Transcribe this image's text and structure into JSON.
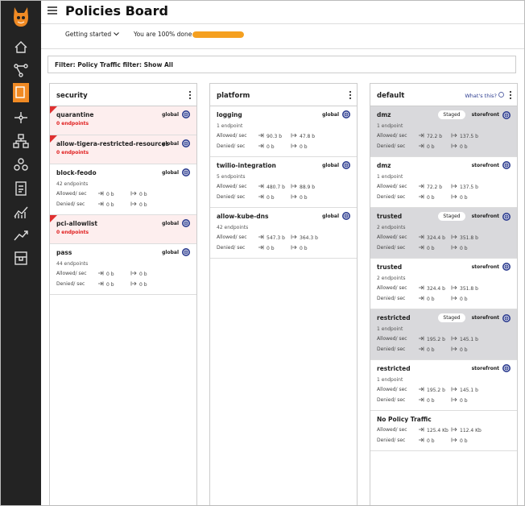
{
  "header": {
    "title": "Policies Board",
    "getting_started": "Getting started",
    "progress_text": "You are 100% done",
    "progress": 100
  },
  "filter": "Filter: Policy Traffic filter: Show All",
  "columns": [
    {
      "name": "security",
      "cards": [
        {
          "name": "quarantine",
          "scope": "global",
          "endpoints": "0 endpoints",
          "alert": true
        },
        {
          "name": "allow-tigera-restricted-resources",
          "scope": "global",
          "endpoints": "0 endpoints",
          "alert": true
        },
        {
          "name": "block-feodo",
          "scope": "global",
          "endpoints": "42 endpoints",
          "allowed": {
            "label": "Allowed/ sec",
            "in": "0 b",
            "out": "0 b"
          },
          "denied": {
            "label": "Denied/ sec",
            "in": "0 b",
            "out": "0 b"
          }
        },
        {
          "name": "pci-allowlist",
          "scope": "global",
          "endpoints": "0 endpoints",
          "alert": true
        },
        {
          "name": "pass",
          "scope": "global",
          "endpoints": "44 endpoints",
          "allowed": {
            "label": "Allowed/ sec",
            "in": "0 b",
            "out": "0 b"
          },
          "denied": {
            "label": "Denied/ sec",
            "in": "0 b",
            "out": "0 b"
          }
        }
      ]
    },
    {
      "name": "platform",
      "cards": [
        {
          "name": "logging",
          "scope": "global",
          "endpoints": "1 endpoint",
          "allowed": {
            "label": "Allowed/ sec",
            "in": "90.3 b",
            "out": "47.8 b"
          },
          "denied": {
            "label": "Denied/ sec",
            "in": "0 b",
            "out": "0 b"
          }
        },
        {
          "name": "twilio-integration",
          "scope": "global",
          "endpoints": "5 endpoints",
          "allowed": {
            "label": "Allowed/ sec",
            "in": "480.7 b",
            "out": "88.9 b"
          },
          "denied": {
            "label": "Denied/ sec",
            "in": "0 b",
            "out": "0 b"
          }
        },
        {
          "name": "allow-kube-dns",
          "scope": "global",
          "endpoints": "42 endpoints",
          "allowed": {
            "label": "Allowed/ sec",
            "in": "547.3 b",
            "out": "364.3 b"
          },
          "denied": {
            "label": "Denied/ sec",
            "in": "0 b",
            "out": "0 b"
          }
        }
      ]
    },
    {
      "name": "default",
      "help": "What's this?",
      "cards": [
        {
          "name": "dmz",
          "staged": "Staged",
          "scope": "storefront",
          "endpoints": "1 endpoint",
          "allowed": {
            "label": "Allowed/ sec",
            "in": "72.2 b",
            "out": "137.5 b"
          },
          "denied": {
            "label": "Denied/ sec",
            "in": "0 b",
            "out": "0 b"
          }
        },
        {
          "name": "dmz",
          "scope": "storefront",
          "endpoints": "1 endpoint",
          "allowed": {
            "label": "Allowed/ sec",
            "in": "72.2 b",
            "out": "137.5 b"
          },
          "denied": {
            "label": "Denied/ sec",
            "in": "0 b",
            "out": "0 b"
          }
        },
        {
          "name": "trusted",
          "staged": "Staged",
          "scope": "storefront",
          "endpoints": "2 endpoints",
          "allowed": {
            "label": "Allowed/ sec",
            "in": "324.4 b",
            "out": "351.8 b"
          },
          "denied": {
            "label": "Denied/ sec",
            "in": "0 b",
            "out": "0 b"
          }
        },
        {
          "name": "trusted",
          "scope": "storefront",
          "endpoints": "2 endpoints",
          "allowed": {
            "label": "Allowed/ sec",
            "in": "324.4 b",
            "out": "351.8 b"
          },
          "denied": {
            "label": "Denied/ sec",
            "in": "0 b",
            "out": "0 b"
          }
        },
        {
          "name": "restricted",
          "staged": "Staged",
          "scope": "storefront",
          "endpoints": "1 endpoint",
          "allowed": {
            "label": "Allowed/ sec",
            "in": "195.2 b",
            "out": "145.1 b"
          },
          "denied": {
            "label": "Denied/ sec",
            "in": "0 b",
            "out": "0 b"
          }
        },
        {
          "name": "restricted",
          "scope": "storefront",
          "endpoints": "1 endpoint",
          "allowed": {
            "label": "Allowed/ sec",
            "in": "195.2 b",
            "out": "145.1 b"
          },
          "denied": {
            "label": "Denied/ sec",
            "in": "0 b",
            "out": "0 b"
          }
        },
        {
          "name": "No Policy Traffic",
          "allowed": {
            "label": "Allowed/ sec",
            "in": "125.4 Kb",
            "out": "112.4 Kb"
          },
          "denied": {
            "label": "Denied/ sec",
            "in": "0 b",
            "out": "0 b"
          }
        }
      ]
    }
  ]
}
